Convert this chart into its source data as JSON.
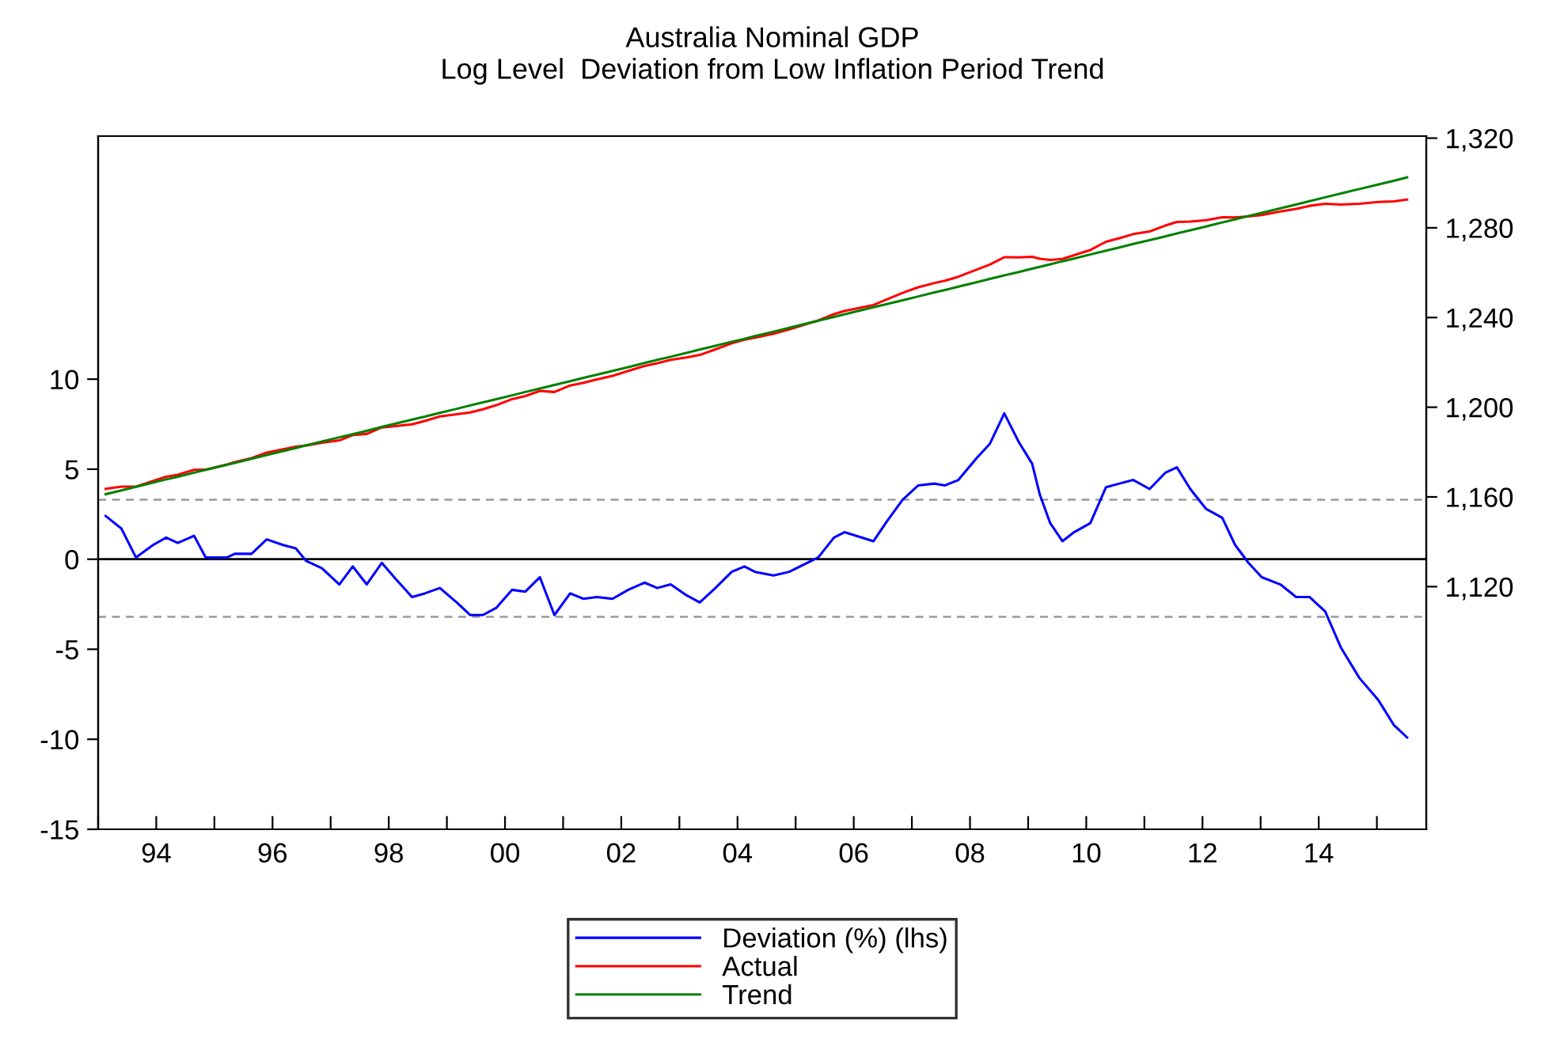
{
  "chart_data": {
    "type": "line",
    "title": "Australia Nominal GDP",
    "subtitle": "Log Level  Deviation from Low Inflation Period Trend",
    "x": [
      1993.13,
      1993.4,
      1993.65,
      1993.95,
      1994.17,
      1994.37,
      1994.65,
      1994.85,
      1995.22,
      1995.35,
      1995.64,
      1995.9,
      1996.17,
      1996.4,
      1996.58,
      1996.85,
      1997.15,
      1997.38,
      1997.62,
      1997.88,
      1998.12,
      1998.4,
      1998.62,
      1998.88,
      1999.17,
      1999.4,
      1999.62,
      1999.85,
      2000.12,
      2000.35,
      2000.6,
      2000.85,
      2001.12,
      2001.35,
      2001.58,
      2001.85,
      2002.12,
      2002.4,
      2002.62,
      2002.85,
      2003.12,
      2003.35,
      2003.62,
      2003.9,
      2004.12,
      2004.3,
      2004.62,
      2004.89,
      2005.39,
      2005.66,
      2005.84,
      2006.34,
      2006.57,
      2006.84,
      2007.11,
      2007.39,
      2007.57,
      2007.8,
      2008.11,
      2008.34,
      2008.59,
      2008.84,
      2009.07,
      2009.2,
      2009.38,
      2009.59,
      2009.79,
      2010.07,
      2010.34,
      2010.57,
      2010.81,
      2011.09,
      2011.36,
      2011.56,
      2011.79,
      2012.06,
      2012.34,
      2012.56,
      2012.79,
      2013.02,
      2013.34,
      2013.61,
      2013.84,
      2014.11,
      2014.38,
      2014.7,
      2015.02,
      2015.29,
      2015.52
    ],
    "series": [
      {
        "name": "Deviation (%) (lhs)",
        "color": "#0000ff",
        "axis": "y",
        "values": [
          2.4,
          1.7,
          0.1,
          0.8,
          1.2,
          0.9,
          1.3,
          0.1,
          0.1,
          0.3,
          0.3,
          1.1,
          0.8,
          0.6,
          -0.1,
          -0.5,
          -1.4,
          -0.4,
          -1.4,
          -0.2,
          -1.1,
          -2.1,
          -1.9,
          -1.6,
          -2.4,
          -3.1,
          -3.1,
          -2.7,
          -1.7,
          -1.8,
          -1.0,
          -3.1,
          -1.9,
          -2.2,
          -2.1,
          -2.2,
          -1.7,
          -1.3,
          -1.6,
          -1.4,
          -2.0,
          -2.4,
          -1.6,
          -0.7,
          -0.4,
          -0.7,
          -0.9,
          -0.7,
          0.1,
          1.2,
          1.5,
          1.0,
          2.1,
          3.3,
          4.1,
          4.2,
          4.1,
          4.4,
          5.6,
          6.4,
          8.1,
          6.5,
          5.3,
          3.6,
          2.0,
          1.0,
          1.5,
          2.0,
          4.0,
          4.2,
          4.4,
          3.9,
          4.8,
          5.1,
          3.9,
          2.8,
          2.3,
          0.8,
          -0.2,
          -1.0,
          -1.4,
          -2.1,
          -2.1,
          -2.9,
          -4.9,
          -6.6,
          -7.8,
          -9.2,
          -9.9
        ]
      },
      {
        "name": "Actual",
        "color": "#ff0000",
        "axis": "y2",
        "values": [
          1163.6,
          1164.6,
          1164.6,
          1167.2,
          1169.0,
          1169.9,
          1172.1,
          1172.2,
          1174.5,
          1175.5,
          1177.3,
          1179.8,
          1181.2,
          1182.4,
          1182.9,
          1184.2,
          1185.2,
          1187.6,
          1188.1,
          1191.0,
          1191.6,
          1192.4,
          1193.9,
          1195.9,
          1196.9,
          1197.7,
          1199.1,
          1200.9,
          1203.6,
          1205.0,
          1207.3,
          1206.8,
          1209.7,
          1210.9,
          1212.4,
          1214.0,
          1216.2,
          1218.4,
          1219.6,
          1221.1,
          1222.2,
          1223.3,
          1225.8,
          1228.5,
          1230.1,
          1231.0,
          1232.8,
          1234.7,
          1238.7,
          1241.5,
          1242.9,
          1245.6,
          1248.1,
          1251.0,
          1253.5,
          1255.4,
          1256.4,
          1258.2,
          1261.3,
          1263.6,
          1266.9,
          1266.8,
          1267.1,
          1266.2,
          1265.7,
          1266.1,
          1267.8,
          1270.1,
          1273.8,
          1275.4,
          1277.2,
          1278.4,
          1281.0,
          1282.6,
          1282.8,
          1283.4,
          1284.7,
          1284.6,
          1285.1,
          1285.7,
          1287.3,
          1288.4,
          1289.8,
          1290.7,
          1290.4,
          1290.7,
          1291.5,
          1291.8,
          1292.6
        ]
      },
      {
        "name": "Trend",
        "color": "#008000",
        "axis": "y2",
        "values": [
          1161.2,
          1162.9,
          1164.5,
          1166.4,
          1167.8,
          1169.0,
          1170.8,
          1172.1,
          1174.4,
          1175.2,
          1177.0,
          1178.7,
          1180.4,
          1181.8,
          1183.0,
          1184.7,
          1186.6,
          1188.0,
          1189.5,
          1191.2,
          1192.7,
          1194.5,
          1195.8,
          1197.5,
          1199.3,
          1200.8,
          1202.2,
          1203.6,
          1205.3,
          1206.8,
          1208.3,
          1209.9,
          1211.6,
          1213.1,
          1214.5,
          1216.2,
          1217.9,
          1219.7,
          1221.1,
          1222.5,
          1224.2,
          1225.7,
          1227.4,
          1229.2,
          1230.5,
          1231.7,
          1233.7,
          1235.4,
          1238.6,
          1240.3,
          1241.4,
          1244.6,
          1246.0,
          1247.7,
          1249.4,
          1251.2,
          1252.3,
          1253.8,
          1255.7,
          1257.2,
          1258.8,
          1260.3,
          1261.8,
          1262.6,
          1263.7,
          1265.1,
          1266.3,
          1268.1,
          1269.8,
          1271.2,
          1272.8,
          1274.5,
          1276.2,
          1277.5,
          1278.9,
          1280.6,
          1282.4,
          1283.8,
          1285.3,
          1286.7,
          1288.7,
          1290.4,
          1291.9,
          1293.6,
          1295.3,
          1297.3,
          1299.3,
          1301.0,
          1302.5
        ]
      }
    ],
    "xlim": [
      1993,
      2015.85
    ],
    "xticks": [
      {
        "value": 1993,
        "label": null
      },
      {
        "value": 1994,
        "label": "94"
      },
      {
        "value": 1995,
        "label": null
      },
      {
        "value": 1996,
        "label": "96"
      },
      {
        "value": 1997,
        "label": null
      },
      {
        "value": 1998,
        "label": "98"
      },
      {
        "value": 1999,
        "label": null
      },
      {
        "value": 2000,
        "label": "00"
      },
      {
        "value": 2001,
        "label": null
      },
      {
        "value": 2002,
        "label": "02"
      },
      {
        "value": 2003,
        "label": null
      },
      {
        "value": 2004,
        "label": "04"
      },
      {
        "value": 2005,
        "label": null
      },
      {
        "value": 2006,
        "label": "06"
      },
      {
        "value": 2007,
        "label": null
      },
      {
        "value": 2008,
        "label": "08"
      },
      {
        "value": 2009,
        "label": null
      },
      {
        "value": 2010,
        "label": "10"
      },
      {
        "value": 2011,
        "label": null
      },
      {
        "value": 2012,
        "label": "12"
      },
      {
        "value": 2013,
        "label": null
      },
      {
        "value": 2014,
        "label": "14"
      },
      {
        "value": 2015,
        "label": null
      }
    ],
    "ylim": [
      -15,
      23.5
    ],
    "yticks": [
      -15,
      -10,
      -5,
      0,
      5,
      10
    ],
    "y2lim": [
      1011.8,
      1320.9
    ],
    "y2ticks": [
      {
        "value": 1120,
        "label": "1,120"
      },
      {
        "value": 1160,
        "label": "1,160"
      },
      {
        "value": 1200,
        "label": "1,200"
      },
      {
        "value": 1240,
        "label": "1,240"
      },
      {
        "value": 1280,
        "label": "1,280"
      },
      {
        "value": 1320,
        "label": "1,320"
      }
    ],
    "ref_lines": [
      {
        "axis": "y",
        "value": 0,
        "color": "#000000",
        "line_style": "solid"
      },
      {
        "axis": "y",
        "value": 3.3,
        "color": "#999999",
        "line_style": "dashed"
      },
      {
        "axis": "y",
        "value": -3.2,
        "color": "#999999",
        "line_style": "dashed"
      }
    ],
    "grid": false,
    "legend": "bottom",
    "marker": "none",
    "line_style": "solid"
  }
}
